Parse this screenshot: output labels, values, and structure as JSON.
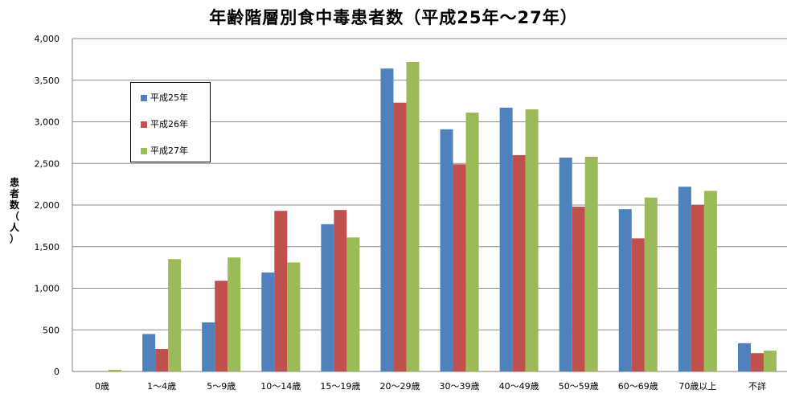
{
  "chart_data": {
    "type": "bar",
    "title": "年齢階層別食中毒患者数（平成25年〜27年）",
    "ylabel": "患者数（人）",
    "xlabel": "",
    "ylim": [
      0,
      4000
    ],
    "yticks": [
      "0",
      "500",
      "1,000",
      "1,500",
      "2,000",
      "2,500",
      "3,000",
      "3,500",
      "4,000"
    ],
    "yticks_values": [
      0,
      500,
      1000,
      1500,
      2000,
      2500,
      3000,
      3500,
      4000
    ],
    "grid": true,
    "legend_position": "upper-left",
    "categories": [
      "0歳",
      "1〜4歳",
      "5〜9歳",
      "10〜14歳",
      "15〜19歳",
      "20〜29歳",
      "30〜39歳",
      "40〜49歳",
      "50〜59歳",
      "60〜69歳",
      "70歳以上",
      "不詳"
    ],
    "series": [
      {
        "name": "平成25年",
        "color": "#4F81BD",
        "values": [
          5,
          450,
          590,
          1190,
          1770,
          3640,
          2910,
          3170,
          2570,
          1950,
          2220,
          340
        ]
      },
      {
        "name": "平成26年",
        "color": "#C0504D",
        "values": [
          5,
          270,
          1090,
          1930,
          1940,
          3230,
          2490,
          2600,
          1980,
          1600,
          2000,
          220
        ]
      },
      {
        "name": "平成27年",
        "color": "#9BBB59",
        "values": [
          20,
          1350,
          1370,
          1310,
          1610,
          3720,
          3110,
          3150,
          2580,
          2090,
          2170,
          250
        ]
      }
    ]
  }
}
